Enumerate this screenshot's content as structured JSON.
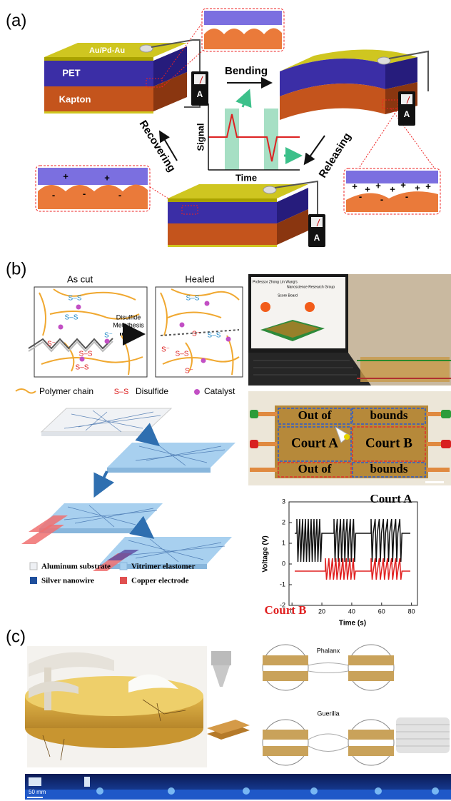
{
  "panel_a": {
    "label": "(a)",
    "layers": [
      "Au/Pd-Au",
      "PET",
      "Kapton"
    ],
    "steps": [
      "Bending",
      "Releasing",
      "Recovering"
    ],
    "plot": {
      "y_label": "Signal",
      "x_label": "Time"
    },
    "meter": "A",
    "charges": [
      "+",
      "-"
    ]
  },
  "panel_b": {
    "label": "(b)",
    "scheme": {
      "left_title": "As cut",
      "right_title": "Healed",
      "arrow_label": [
        "Disulfide",
        "Metathesis"
      ],
      "bond": "S–S",
      "anion": "S⁻",
      "legend": [
        "Polymer chain",
        "Disulfide",
        "Catalyst"
      ]
    },
    "screen": {
      "title": "Professor Zhong Lin Wang's",
      "subtitle": "Nanoscience Research Group",
      "board": "Score Board"
    },
    "court": {
      "labels": [
        "Out of",
        "bounds",
        "Court A",
        "Court B",
        "Out of",
        "bounds"
      ]
    },
    "fabrication_legend": [
      "Aluminum substrate",
      "Vitrimer elastomer",
      "Silver nanowire",
      "Copper electrode"
    ],
    "plot": {
      "series": [
        "Court A",
        "Court B"
      ],
      "y_label": "Voltage (V)",
      "x_label": "Time (s)",
      "ylim": [
        -2,
        3
      ],
      "yticks": [
        3,
        2,
        1,
        0,
        -1,
        -2
      ],
      "xlim": [
        -2,
        84
      ],
      "xticks": [
        0,
        20,
        40,
        60,
        80
      ]
    }
  },
  "panel_c": {
    "label": "(c)",
    "modes": [
      "Phalanx",
      "Guerilla"
    ],
    "scale_bar": "50 mm"
  }
}
